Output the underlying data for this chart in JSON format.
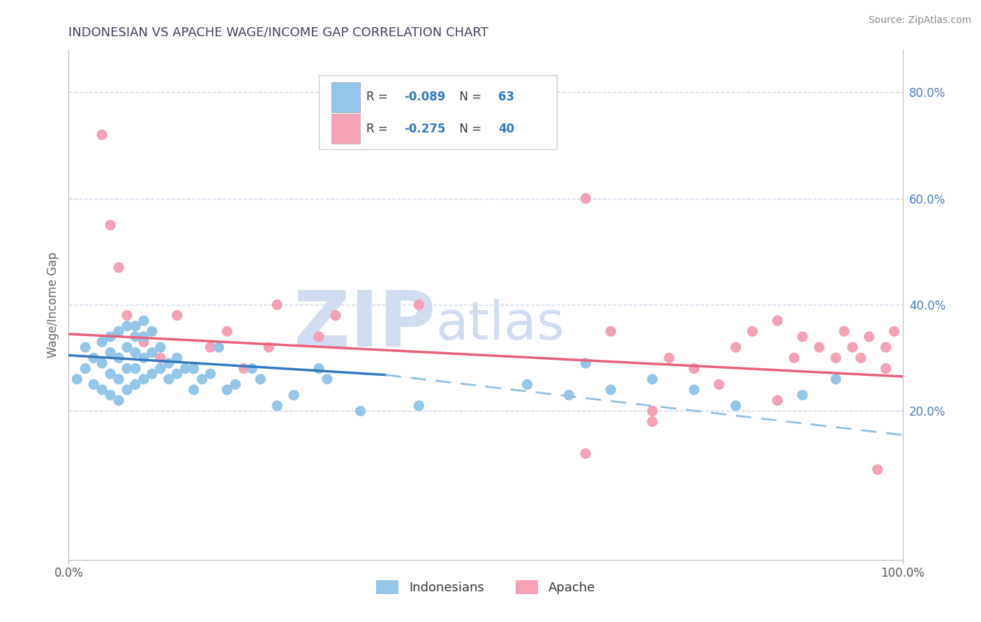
{
  "title": "INDONESIAN VS APACHE WAGE/INCOME GAP CORRELATION CHART",
  "source": "Source: ZipAtlas.com",
  "ylabel": "Wage/Income Gap",
  "xlim": [
    0.0,
    1.0
  ],
  "ylim": [
    -0.08,
    0.88
  ],
  "y_ticks_right": [
    0.2,
    0.4,
    0.6,
    0.8
  ],
  "y_tick_labels_right": [
    "20.0%",
    "40.0%",
    "60.0%",
    "80.0%"
  ],
  "indonesian_color": "#92C5E8",
  "apache_color": "#F4A0B5",
  "indonesian_line_color": "#3478C0",
  "apache_line_color": "#E8607A",
  "dashed_line_color": "#90C0E0",
  "background_color": "#ffffff",
  "grid_color": "#C8D4E8",
  "title_color": "#404060",
  "watermark_zip": "ZIP",
  "watermark_atlas": "atlas",
  "watermark_color": "#D0DCF0",
  "R_indonesian": -0.089,
  "N_indonesian": 63,
  "R_apache": -0.275,
  "N_apache": 40,
  "indonesian_scatter_x": [
    0.01,
    0.02,
    0.02,
    0.03,
    0.03,
    0.04,
    0.04,
    0.04,
    0.05,
    0.05,
    0.05,
    0.05,
    0.06,
    0.06,
    0.06,
    0.06,
    0.07,
    0.07,
    0.07,
    0.07,
    0.08,
    0.08,
    0.08,
    0.08,
    0.08,
    0.09,
    0.09,
    0.09,
    0.09,
    0.1,
    0.1,
    0.1,
    0.11,
    0.11,
    0.12,
    0.12,
    0.13,
    0.13,
    0.14,
    0.15,
    0.15,
    0.16,
    0.17,
    0.18,
    0.19,
    0.2,
    0.22,
    0.23,
    0.25,
    0.27,
    0.3,
    0.31,
    0.35,
    0.42,
    0.55,
    0.6,
    0.62,
    0.65,
    0.7,
    0.75,
    0.8,
    0.88,
    0.92
  ],
  "indonesian_scatter_y": [
    0.26,
    0.28,
    0.32,
    0.25,
    0.3,
    0.24,
    0.29,
    0.33,
    0.23,
    0.27,
    0.31,
    0.34,
    0.22,
    0.26,
    0.3,
    0.35,
    0.24,
    0.28,
    0.32,
    0.36,
    0.25,
    0.28,
    0.31,
    0.34,
    0.36,
    0.26,
    0.3,
    0.34,
    0.37,
    0.27,
    0.31,
    0.35,
    0.28,
    0.32,
    0.26,
    0.29,
    0.27,
    0.3,
    0.28,
    0.24,
    0.28,
    0.26,
    0.27,
    0.32,
    0.24,
    0.25,
    0.28,
    0.26,
    0.21,
    0.23,
    0.28,
    0.26,
    0.2,
    0.21,
    0.25,
    0.23,
    0.29,
    0.24,
    0.26,
    0.24,
    0.21,
    0.23,
    0.26
  ],
  "apache_scatter_x": [
    0.04,
    0.05,
    0.06,
    0.07,
    0.09,
    0.11,
    0.13,
    0.15,
    0.17,
    0.19,
    0.21,
    0.24,
    0.25,
    0.3,
    0.32,
    0.42,
    0.62,
    0.65,
    0.7,
    0.72,
    0.75,
    0.78,
    0.8,
    0.82,
    0.85,
    0.87,
    0.88,
    0.9,
    0.92,
    0.93,
    0.94,
    0.95,
    0.96,
    0.97,
    0.98,
    0.98,
    0.99,
    0.62,
    0.7,
    0.85
  ],
  "apache_scatter_y": [
    0.72,
    0.55,
    0.47,
    0.38,
    0.33,
    0.3,
    0.38,
    0.28,
    0.32,
    0.35,
    0.28,
    0.32,
    0.4,
    0.34,
    0.38,
    0.4,
    0.6,
    0.35,
    0.2,
    0.3,
    0.28,
    0.25,
    0.32,
    0.35,
    0.22,
    0.3,
    0.34,
    0.32,
    0.3,
    0.35,
    0.32,
    0.3,
    0.34,
    0.09,
    0.32,
    0.28,
    0.35,
    0.12,
    0.18,
    0.37
  ],
  "legend_label_indonesian": "Indonesians",
  "legend_label_apache": "Apache",
  "indonesian_trend": [
    0.0,
    0.305,
    0.38,
    0.268
  ],
  "indonesian_dashed": [
    0.38,
    0.268,
    1.0,
    0.155
  ],
  "apache_trend": [
    0.0,
    0.345,
    1.0,
    0.265
  ]
}
